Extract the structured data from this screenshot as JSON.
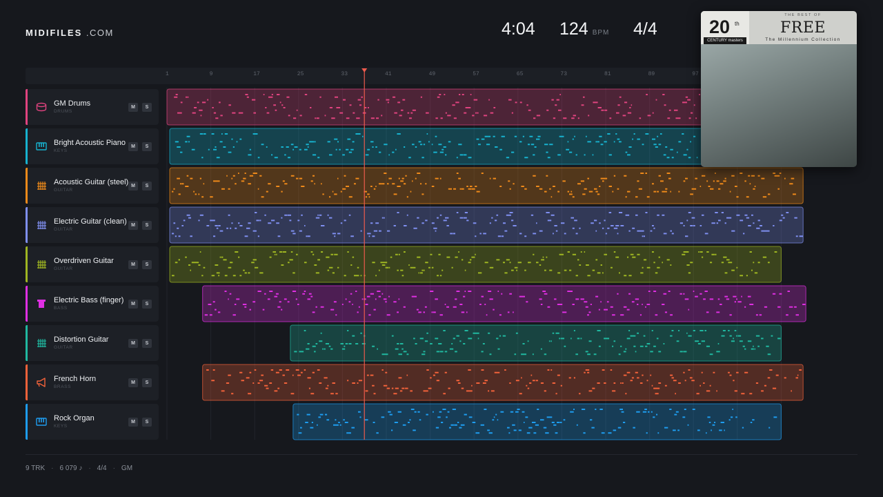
{
  "brand": {
    "name_bold": "MIDIFILES",
    "name_suffix": ".COM"
  },
  "header": {
    "duration": "4:04",
    "tempo": "124",
    "tempo_unit": "BPM",
    "time_signature": "4/4"
  },
  "ruler": {
    "ticks": [
      "1",
      "9",
      "17",
      "25",
      "33",
      "41",
      "49",
      "57",
      "65",
      "73",
      "81",
      "89",
      "97"
    ]
  },
  "playhead_bar": 37,
  "tracks": [
    {
      "name": "GM Drums",
      "category": "DRUMS",
      "color": "#e0437f",
      "icon": "drum-icon",
      "mute": "M",
      "solo": "S",
      "clip_start_bar": 1,
      "clip_end_bar": 100
    },
    {
      "name": "Bright Acoustic Piano",
      "category": "KEYS",
      "color": "#17b2cf",
      "icon": "piano-icon",
      "mute": "M",
      "solo": "S",
      "clip_start_bar": 1.5,
      "clip_end_bar": 100
    },
    {
      "name": "Acoustic Guitar (steel)",
      "category": "GUITAR",
      "color": "#ef8a1a",
      "icon": "guitar-icon",
      "mute": "M",
      "solo": "S",
      "clip_start_bar": 1.5,
      "clip_end_bar": 117
    },
    {
      "name": "Electric Guitar (clean)",
      "category": "GUITAR",
      "color": "#7f8ff0",
      "icon": "guitar-icon",
      "mute": "M",
      "solo": "S",
      "clip_start_bar": 1.5,
      "clip_end_bar": 117
    },
    {
      "name": "Overdriven Guitar",
      "category": "GUITAR",
      "color": "#9fb622",
      "icon": "guitar-icon",
      "mute": "M",
      "solo": "S",
      "clip_start_bar": 1.5,
      "clip_end_bar": 113
    },
    {
      "name": "Electric Bass (finger)",
      "category": "BASS",
      "color": "#df2fe3",
      "icon": "bass-icon",
      "mute": "M",
      "solo": "S",
      "clip_start_bar": 7.5,
      "clip_end_bar": 117.5
    },
    {
      "name": "Distortion Guitar",
      "category": "GUITAR",
      "color": "#20b8a0",
      "icon": "guitar-icon",
      "mute": "M",
      "solo": "S",
      "clip_start_bar": 23.5,
      "clip_end_bar": 113
    },
    {
      "name": "French Horn",
      "category": "BRASS",
      "color": "#f2623a",
      "icon": "horn-icon",
      "mute": "M",
      "solo": "S",
      "clip_start_bar": 7.5,
      "clip_end_bar": 117
    },
    {
      "name": "Rock Organ",
      "category": "KEYS",
      "color": "#1e9df0",
      "icon": "organ-icon",
      "mute": "M",
      "solo": "S",
      "clip_start_bar": 24,
      "clip_end_bar": 113
    }
  ],
  "cover": {
    "number": "20",
    "ordinal": "th",
    "century_masters": "CENTURY masters",
    "best_of": "THE BEST OF",
    "artist": "FREE",
    "collection": "The Millennium Collection"
  },
  "footer": {
    "tracks": "9 TRK",
    "notes": "6 079 ♪",
    "time_signature": "4/4",
    "standard": "GM"
  }
}
